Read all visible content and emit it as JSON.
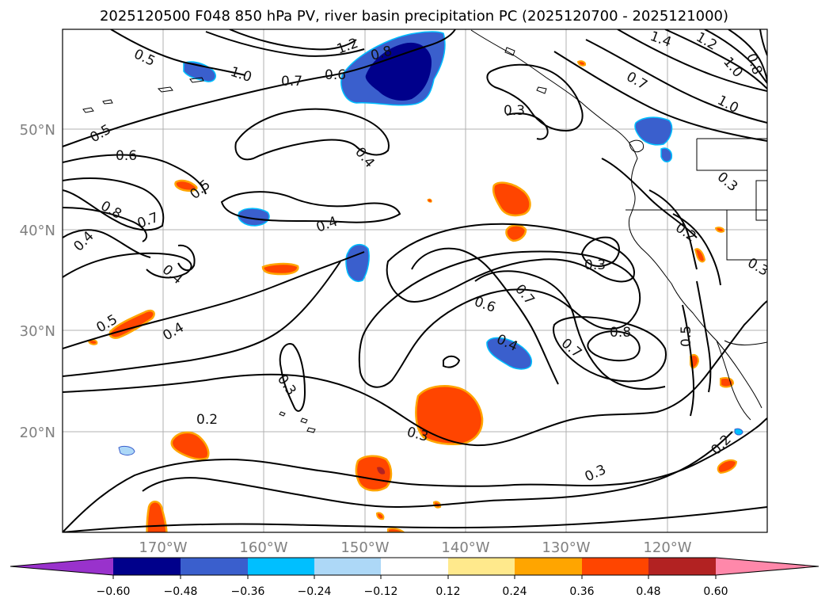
{
  "title": "2025120500 F048 850 hPa PV, river basin precipitation PC (2025120700 - 2025121000)",
  "lat_labels": [
    "50°N",
    "40°N",
    "30°N",
    "20°N"
  ],
  "lon_labels": [
    "170°W",
    "160°W",
    "150°W",
    "140°W",
    "130°W",
    "120°W"
  ],
  "contour_labels": [
    "0.5",
    "1.0",
    "0.7",
    "0.6",
    "1.2",
    "0.8",
    "1.4",
    "1.2",
    "1.0",
    "0.8",
    "0.7",
    "1.0",
    "0.5",
    "0.6",
    "0.3",
    "0.4",
    "0.8",
    "0.5",
    "0.7",
    "0.4",
    "0.4",
    "0.3",
    "0.4",
    "0.7",
    "0.6",
    "0.5",
    "0.4",
    "0.4",
    "0.3",
    "0.8",
    "0.7",
    "0.2",
    "0.3",
    "0.3",
    "0.2",
    "0.3",
    "0.2",
    "0.5",
    "0.3"
  ],
  "colorbar": {
    "ticks": [
      "−0.60",
      "−0.48",
      "−0.36",
      "−0.24",
      "−0.12",
      "0.12",
      "0.24",
      "0.36",
      "0.48",
      "0.60"
    ],
    "colors": [
      "#9932cc",
      "#00008b",
      "#3a5fcd",
      "#00bfff",
      "#add8f7",
      "#ffffff",
      "#ffe98c",
      "#ffa500",
      "#ff4500",
      "#b22222",
      "#ff88aa"
    ]
  }
}
